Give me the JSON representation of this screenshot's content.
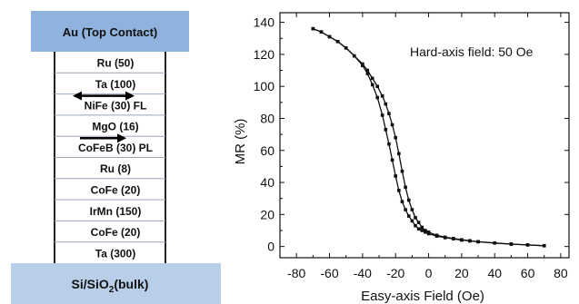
{
  "stack": {
    "top_contact": "Au (Top Contact)",
    "layers": [
      {
        "label": "Ru (50)"
      },
      {
        "label": "Ta (100)"
      },
      {
        "label": "NiFe (30)  FL",
        "arrow": "double"
      },
      {
        "label": "MgO (16)"
      },
      {
        "label": "CoFeB (30) PL",
        "arrow": "right"
      },
      {
        "label": "Ru (8)"
      },
      {
        "label": "CoFe (20)"
      },
      {
        "label": "IrMn (150)"
      },
      {
        "label": "CoFe (20)"
      },
      {
        "label": "Ta (300)"
      }
    ],
    "substrate": {
      "main": "Si/SiO",
      "sub": "2",
      "tail": "(bulk)"
    },
    "colors": {
      "contact": "#8fb3dc",
      "substrate": "#b9cfe9"
    }
  },
  "chart_data": {
    "type": "scatter",
    "title": "",
    "annotation": "Hard-axis field: 50 Oe",
    "xlabel": "Easy-axis Field (Oe)",
    "ylabel": "MR (%)",
    "xlim": [
      -90,
      85
    ],
    "ylim": [
      -7,
      146
    ],
    "xticks": [
      -80,
      -60,
      -40,
      -20,
      0,
      20,
      40,
      60,
      80
    ],
    "yticks": [
      0,
      20,
      40,
      60,
      80,
      100,
      120,
      140
    ],
    "grid": false,
    "legend": "none",
    "series": [
      {
        "x": [
          -70,
          -65,
          -60,
          -55,
          -50,
          -45,
          -40,
          -37,
          -34,
          -31,
          -28,
          -26,
          -24,
          -22,
          -20,
          -18,
          -16,
          -14,
          -12,
          -10,
          -8,
          -6,
          -4,
          -2,
          0,
          5,
          10,
          15,
          20,
          25,
          30,
          40,
          50,
          60,
          70
        ],
        "y": [
          136,
          134,
          131,
          128,
          124,
          119,
          113,
          108,
          101,
          93,
          82,
          73,
          64,
          54,
          44,
          35,
          28,
          23,
          19,
          16,
          13,
          11,
          10,
          9,
          8,
          6.5,
          5.5,
          4.8,
          4,
          3.5,
          3,
          2.2,
          1.5,
          1,
          0.5
        ]
      },
      {
        "x": [
          -70,
          -65,
          -60,
          -55,
          -50,
          -45,
          -40,
          -37,
          -34,
          -31,
          -28,
          -26,
          -24,
          -22,
          -20,
          -18,
          -16,
          -14,
          -12,
          -10,
          -8,
          -6,
          -4,
          -2,
          0,
          5,
          10,
          15,
          20,
          25,
          30,
          40,
          50,
          60,
          70
        ],
        "y": [
          136,
          134,
          131,
          128,
          124,
          119,
          114,
          110,
          105,
          100,
          94,
          89,
          83,
          76,
          68,
          58,
          47,
          37,
          29,
          23,
          18,
          15,
          12,
          10,
          9,
          7,
          5.8,
          5,
          4.2,
          3.6,
          3,
          2.2,
          1.5,
          1,
          0.5
        ]
      }
    ]
  }
}
